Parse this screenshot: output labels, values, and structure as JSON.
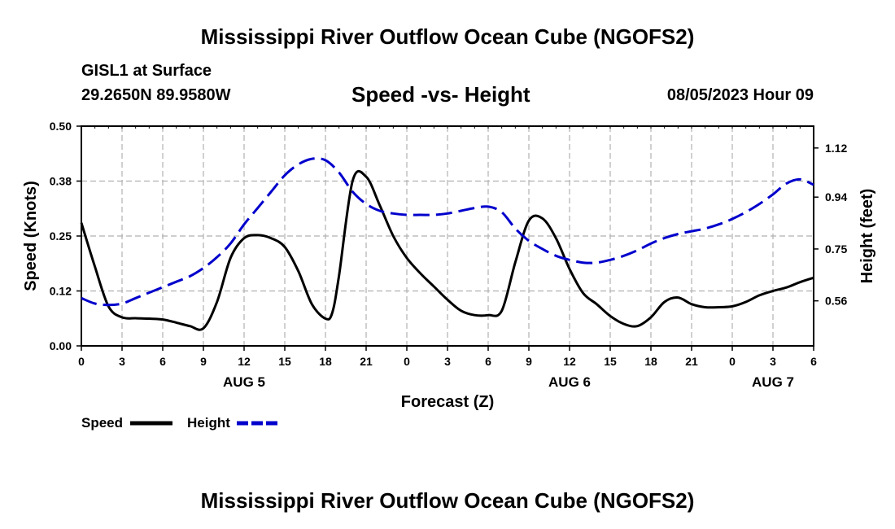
{
  "header": {
    "title": "Mississippi River Outflow Ocean Cube (NGOFS2)",
    "station": "GISL1 at Surface",
    "location": "29.2650N  89.9580W",
    "subtitle": "Speed -vs- Height",
    "datetime": "08/05/2023 Hour 09"
  },
  "footer": {
    "title": "Mississippi River Outflow Ocean Cube (NGOFS2)"
  },
  "colors": {
    "speed": "#000000",
    "height": "#0000cc",
    "grid": "#b0b0b0"
  },
  "chart_data": {
    "type": "line",
    "title": "Speed -vs- Height",
    "xlabel": "Forecast (Z)",
    "ylabel": "Speed (Knots)",
    "y2label": "Height (feet)",
    "xlim": [
      0,
      54
    ],
    "ylim": [
      0,
      0.5
    ],
    "y2lim": [
      0.395,
      1.2
    ],
    "x_ticks": [
      0,
      3,
      6,
      9,
      12,
      15,
      18,
      21,
      24,
      27,
      30,
      33,
      36,
      39,
      42,
      45,
      48,
      51,
      54
    ],
    "x_tick_labels": [
      "0",
      "3",
      "6",
      "9",
      "12",
      "15",
      "18",
      "21",
      "0",
      "3",
      "6",
      "9",
      "12",
      "15",
      "18",
      "21",
      "0",
      "3",
      "6"
    ],
    "day_labels": [
      {
        "label": "AUG 5",
        "x": 12
      },
      {
        "label": "AUG 6",
        "x": 36
      },
      {
        "label": "AUG 7",
        "x": 51
      }
    ],
    "y_ticks": [
      0.0,
      0.125,
      0.25,
      0.375,
      0.5
    ],
    "y_tick_labels": [
      "0.00",
      "0.12",
      "0.25",
      "0.38",
      "0.50"
    ],
    "y2_ticks": [
      0.56,
      0.75,
      0.94,
      1.12
    ],
    "y2_tick_labels": [
      "0.56",
      "0.75",
      "0.94",
      "1.12"
    ],
    "grid": true,
    "legend": "bottom-left",
    "series": [
      {
        "name": "Speed",
        "axis": "left",
        "style": "solid",
        "x": [
          0,
          1,
          2,
          3,
          4,
          5,
          6,
          7,
          8,
          9,
          10,
          11,
          12,
          13,
          14,
          15,
          16,
          17,
          18,
          18.5,
          19,
          20,
          21,
          22,
          23,
          24,
          25,
          26,
          27,
          28,
          29,
          30,
          31,
          32,
          33,
          34,
          35,
          36,
          37,
          38,
          39,
          40,
          41,
          42,
          43,
          44,
          45,
          46,
          47,
          48,
          49,
          50,
          51,
          52,
          53,
          54
        ],
        "y": [
          0.28,
          0.18,
          0.09,
          0.065,
          0.063,
          0.062,
          0.06,
          0.053,
          0.045,
          0.04,
          0.1,
          0.2,
          0.245,
          0.252,
          0.245,
          0.225,
          0.17,
          0.095,
          0.062,
          0.075,
          0.16,
          0.375,
          0.385,
          0.32,
          0.25,
          0.2,
          0.165,
          0.135,
          0.105,
          0.08,
          0.07,
          0.07,
          0.08,
          0.19,
          0.285,
          0.29,
          0.245,
          0.175,
          0.12,
          0.095,
          0.068,
          0.05,
          0.045,
          0.065,
          0.1,
          0.11,
          0.095,
          0.088,
          0.088,
          0.09,
          0.1,
          0.115,
          0.125,
          0.133,
          0.145,
          0.155
        ]
      },
      {
        "name": "Height",
        "axis": "right",
        "style": "dashed",
        "x": [
          0,
          1,
          2,
          3,
          4,
          5,
          6,
          7,
          8,
          9,
          10,
          11,
          12,
          13,
          14,
          15,
          16,
          17,
          18,
          19,
          20,
          21,
          22,
          23,
          24,
          25,
          26,
          27,
          28,
          29,
          30,
          31,
          32,
          33,
          34,
          35,
          36,
          37,
          38,
          39,
          40,
          41,
          42,
          43,
          44,
          45,
          46,
          47,
          48,
          49,
          50,
          51,
          52,
          53,
          54
        ],
        "y": [
          0.57,
          0.55,
          0.545,
          0.55,
          0.57,
          0.59,
          0.61,
          0.63,
          0.65,
          0.68,
          0.72,
          0.77,
          0.84,
          0.9,
          0.96,
          1.02,
          1.06,
          1.08,
          1.075,
          1.03,
          0.96,
          0.915,
          0.89,
          0.88,
          0.875,
          0.875,
          0.875,
          0.88,
          0.89,
          0.9,
          0.905,
          0.885,
          0.825,
          0.78,
          0.75,
          0.725,
          0.71,
          0.7,
          0.7,
          0.71,
          0.725,
          0.745,
          0.77,
          0.79,
          0.805,
          0.815,
          0.825,
          0.84,
          0.86,
          0.885,
          0.915,
          0.95,
          0.99,
          1.005,
          0.985
        ]
      }
    ]
  }
}
